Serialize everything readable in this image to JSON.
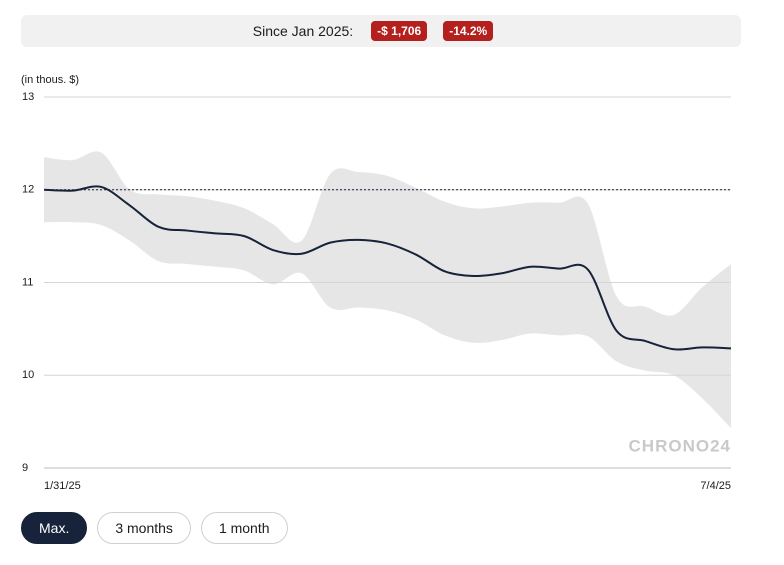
{
  "header": {
    "label": "Since Jan 2025:",
    "badges": [
      "-$ 1,706",
      "-14.2%"
    ]
  },
  "chart_data": {
    "type": "line",
    "y_label": "(in thous. $)",
    "watermark": "CHRONO24",
    "categories": [
      "1/31/25",
      null,
      null,
      null,
      null,
      null,
      null,
      null,
      null,
      null,
      null,
      null,
      null,
      null,
      null,
      null,
      null,
      null,
      null,
      null,
      null,
      null,
      null,
      null,
      "7/4/25"
    ],
    "values": [
      12.0,
      11.99,
      12.03,
      11.83,
      11.6,
      11.56,
      11.53,
      11.5,
      11.35,
      11.31,
      11.43,
      11.46,
      11.42,
      11.3,
      11.12,
      11.07,
      11.1,
      11.17,
      11.15,
      11.14,
      10.48,
      10.37,
      10.28,
      10.3,
      10.29
    ],
    "band_upper": [
      12.35,
      12.32,
      12.4,
      12.0,
      11.95,
      11.93,
      11.88,
      11.8,
      11.63,
      11.45,
      12.17,
      12.19,
      12.15,
      12.02,
      11.87,
      11.8,
      11.82,
      11.86,
      11.86,
      11.85,
      10.85,
      10.74,
      10.65,
      10.95,
      11.2
    ],
    "band_lower": [
      11.65,
      11.65,
      11.62,
      11.45,
      11.23,
      11.2,
      11.17,
      11.13,
      10.98,
      11.1,
      10.73,
      10.73,
      10.7,
      10.6,
      10.43,
      10.35,
      10.38,
      10.45,
      10.43,
      10.42,
      10.15,
      10.05,
      10.0,
      9.75,
      9.43
    ],
    "color": "#17233a",
    "band_color": "#e6e6e6",
    "reference": 12,
    "ylim": [
      9,
      13
    ],
    "yticks": [
      9,
      10,
      11,
      12,
      13
    ],
    "grid": true
  },
  "buttons": [
    "Max.",
    "3 months",
    "1 month"
  ]
}
